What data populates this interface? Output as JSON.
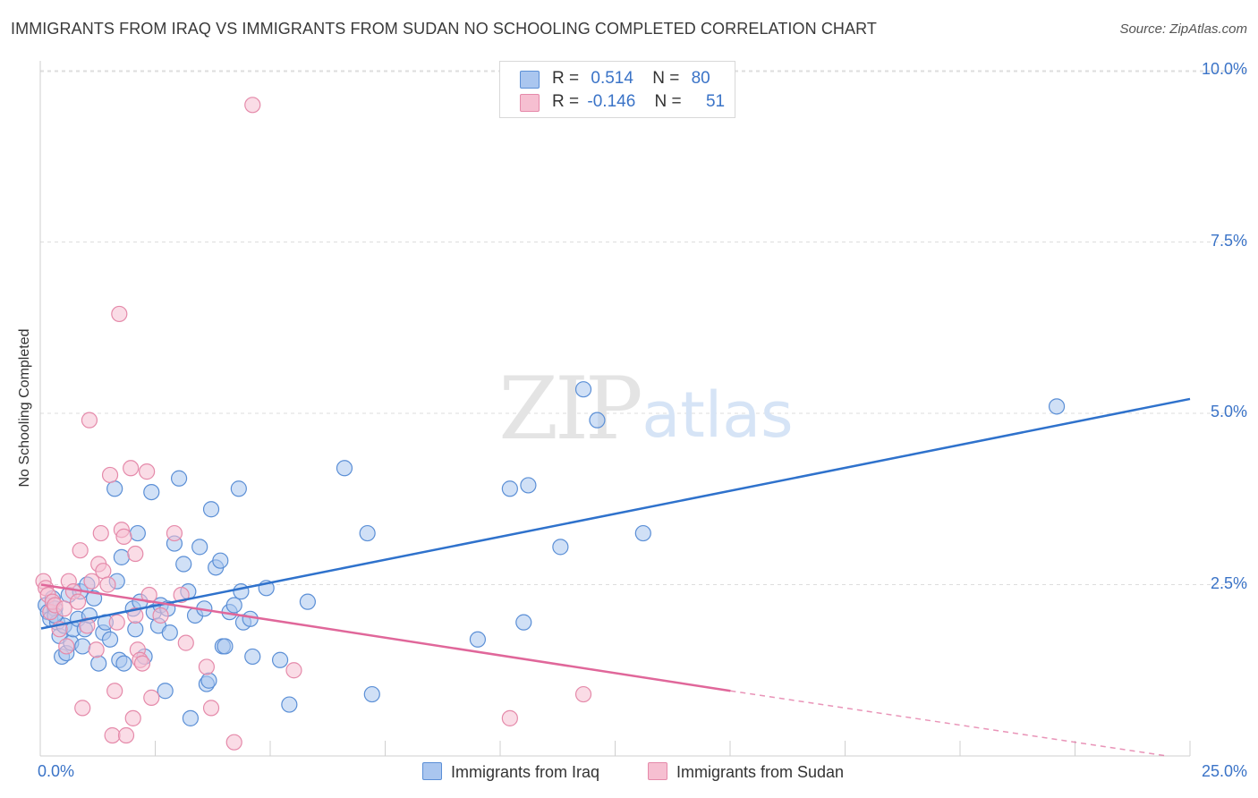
{
  "header": {
    "title": "IMMIGRANTS FROM IRAQ VS IMMIGRANTS FROM SUDAN NO SCHOOLING COMPLETED CORRELATION CHART",
    "source": "Source: ZipAtlas.com"
  },
  "watermark": {
    "zip": "ZIP",
    "atlas": "atlas"
  },
  "legend_top": {
    "rows": [
      {
        "r_label": "R =",
        "r_value": "0.514",
        "n_label": "N =",
        "n_value": "80"
      },
      {
        "r_label": "R =",
        "r_value": "-0.146",
        "n_label": "N =",
        "n_value": "51"
      }
    ]
  },
  "colors": {
    "iraq_fill": "#aac6ef",
    "iraq_stroke": "#5b8fd6",
    "iraq_line": "#2f72cc",
    "sudan_fill": "#f6bfd1",
    "sudan_stroke": "#e58aaa",
    "sudan_line": "#e0679a",
    "tick_text": "#3a73c7",
    "grid": "#dddddd"
  },
  "chart_data": {
    "type": "scatter",
    "title": "IMMIGRANTS FROM IRAQ VS IMMIGRANTS FROM SUDAN NO SCHOOLING COMPLETED CORRELATION CHART",
    "xlabel": "",
    "ylabel": "No Schooling Completed",
    "xlim": [
      0,
      25
    ],
    "ylim": [
      0,
      10.5
    ],
    "x_tick_labels": [
      "0.0%",
      "25.0%"
    ],
    "y_ticks": [
      2.5,
      5.0,
      7.5,
      10.0
    ],
    "y_tick_labels": [
      "2.5%",
      "5.0%",
      "7.5%",
      "10.0%"
    ],
    "grid": "horizontal dashed",
    "legend_placement": "top-center and bottom-center",
    "series": [
      {
        "name": "Immigrants from Iraq",
        "r": 0.514,
        "n": 80,
        "trend": {
          "x": [
            0,
            25
          ],
          "y": [
            1.86,
            5.21
          ]
        },
        "points": [
          [
            0.1,
            2.2
          ],
          [
            0.15,
            2.1
          ],
          [
            0.2,
            2.0
          ],
          [
            0.25,
            2.3
          ],
          [
            0.3,
            2.15
          ],
          [
            0.35,
            1.95
          ],
          [
            0.4,
            1.75
          ],
          [
            0.45,
            1.45
          ],
          [
            0.5,
            1.9
          ],
          [
            0.55,
            1.5
          ],
          [
            0.6,
            2.35
          ],
          [
            0.65,
            1.65
          ],
          [
            0.7,
            1.85
          ],
          [
            0.8,
            2.0
          ],
          [
            0.85,
            2.4
          ],
          [
            0.9,
            1.6
          ],
          [
            0.95,
            1.85
          ],
          [
            1.0,
            2.5
          ],
          [
            1.05,
            2.05
          ],
          [
            1.15,
            2.3
          ],
          [
            1.25,
            1.35
          ],
          [
            1.35,
            1.8
          ],
          [
            1.4,
            1.95
          ],
          [
            1.5,
            1.7
          ],
          [
            1.6,
            3.9
          ],
          [
            1.65,
            2.55
          ],
          [
            1.7,
            1.4
          ],
          [
            1.75,
            2.9
          ],
          [
            1.8,
            1.35
          ],
          [
            2.0,
            2.15
          ],
          [
            2.05,
            1.85
          ],
          [
            2.1,
            3.25
          ],
          [
            2.15,
            2.25
          ],
          [
            2.25,
            1.45
          ],
          [
            2.4,
            3.85
          ],
          [
            2.45,
            2.1
          ],
          [
            2.55,
            1.9
          ],
          [
            2.6,
            2.2
          ],
          [
            2.7,
            0.95
          ],
          [
            2.75,
            2.15
          ],
          [
            2.8,
            1.8
          ],
          [
            2.9,
            3.1
          ],
          [
            3.0,
            4.05
          ],
          [
            3.1,
            2.8
          ],
          [
            3.2,
            2.4
          ],
          [
            3.25,
            0.55
          ],
          [
            3.35,
            2.05
          ],
          [
            3.45,
            3.05
          ],
          [
            3.55,
            2.15
          ],
          [
            3.6,
            1.05
          ],
          [
            3.65,
            1.1
          ],
          [
            3.7,
            3.6
          ],
          [
            3.8,
            2.75
          ],
          [
            3.9,
            2.85
          ],
          [
            3.95,
            1.6
          ],
          [
            4.0,
            1.6
          ],
          [
            4.1,
            2.1
          ],
          [
            4.2,
            2.2
          ],
          [
            4.3,
            3.9
          ],
          [
            4.35,
            2.4
          ],
          [
            4.4,
            1.95
          ],
          [
            4.55,
            2.0
          ],
          [
            4.6,
            1.45
          ],
          [
            4.9,
            2.45
          ],
          [
            5.2,
            1.4
          ],
          [
            5.4,
            0.75
          ],
          [
            5.8,
            2.25
          ],
          [
            6.6,
            4.2
          ],
          [
            7.1,
            3.25
          ],
          [
            7.2,
            0.9
          ],
          [
            9.5,
            1.7
          ],
          [
            10.2,
            3.9
          ],
          [
            10.5,
            1.95
          ],
          [
            10.6,
            3.95
          ],
          [
            11.3,
            3.05
          ],
          [
            11.8,
            5.35
          ],
          [
            12.1,
            4.9
          ],
          [
            13.1,
            3.25
          ],
          [
            22.1,
            5.1
          ],
          [
            0.3,
            2.05
          ]
        ]
      },
      {
        "name": "Immigrants from Sudan",
        "r": -0.146,
        "n": 51,
        "trend": {
          "x": [
            0,
            15
          ],
          "y": [
            2.5,
            0.95
          ]
        },
        "trend_dashed": {
          "x": [
            15,
            24.5
          ],
          "y": [
            0.95,
            0.0
          ]
        },
        "points": [
          [
            0.05,
            2.55
          ],
          [
            0.1,
            2.45
          ],
          [
            0.15,
            2.35
          ],
          [
            0.2,
            2.1
          ],
          [
            0.25,
            2.25
          ],
          [
            0.3,
            2.2
          ],
          [
            0.4,
            1.85
          ],
          [
            0.5,
            2.15
          ],
          [
            0.55,
            1.6
          ],
          [
            0.6,
            2.55
          ],
          [
            0.7,
            2.4
          ],
          [
            0.8,
            2.25
          ],
          [
            0.85,
            3.0
          ],
          [
            0.9,
            0.7
          ],
          [
            1.0,
            1.9
          ],
          [
            1.05,
            4.9
          ],
          [
            1.1,
            2.55
          ],
          [
            1.2,
            1.55
          ],
          [
            1.25,
            2.8
          ],
          [
            1.3,
            3.25
          ],
          [
            1.35,
            2.7
          ],
          [
            1.45,
            2.5
          ],
          [
            1.5,
            4.1
          ],
          [
            1.55,
            0.3
          ],
          [
            1.6,
            0.95
          ],
          [
            1.65,
            1.95
          ],
          [
            1.7,
            6.45
          ],
          [
            1.75,
            3.3
          ],
          [
            1.8,
            3.2
          ],
          [
            1.85,
            0.3
          ],
          [
            1.95,
            4.2
          ],
          [
            2.0,
            0.55
          ],
          [
            2.05,
            2.95
          ],
          [
            2.1,
            1.55
          ],
          [
            2.15,
            1.4
          ],
          [
            2.2,
            1.35
          ],
          [
            2.3,
            4.15
          ],
          [
            2.35,
            2.35
          ],
          [
            2.4,
            0.85
          ],
          [
            2.6,
            2.05
          ],
          [
            2.9,
            3.25
          ],
          [
            3.05,
            2.35
          ],
          [
            3.15,
            1.65
          ],
          [
            3.6,
            1.3
          ],
          [
            3.7,
            0.7
          ],
          [
            4.2,
            0.2
          ],
          [
            4.6,
            9.5
          ],
          [
            5.5,
            1.25
          ],
          [
            10.2,
            0.55
          ],
          [
            11.8,
            0.9
          ],
          [
            2.05,
            2.05
          ]
        ]
      }
    ]
  },
  "legend_bottom": {
    "iraq_label": "Immigrants from Iraq",
    "sudan_label": "Immigrants from Sudan"
  }
}
